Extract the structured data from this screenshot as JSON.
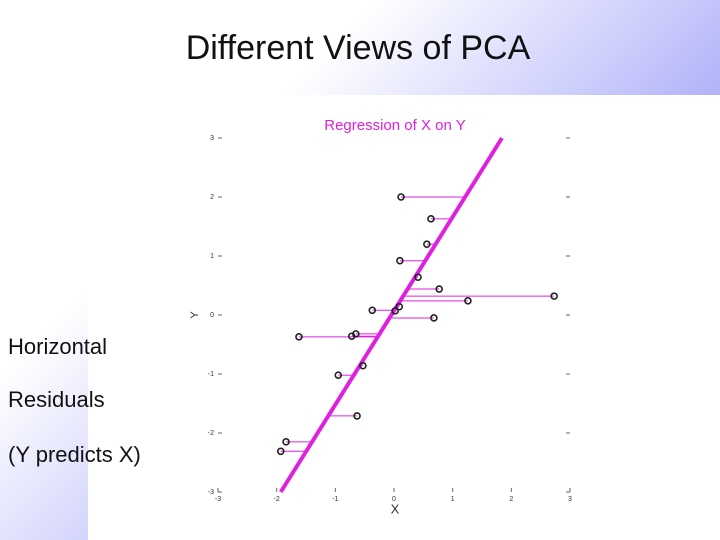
{
  "slide": {
    "title": "Different Views of PCA",
    "text": [
      "Horizontal",
      "Residuals",
      "(Y predicts X)"
    ]
  },
  "chart_data": {
    "type": "scatter",
    "title": "Regression of X on Y",
    "xlabel": "X",
    "ylabel": "Y",
    "x": [
      0.12,
      0.63,
      0.56,
      0.1,
      0.41,
      0.77,
      2.73,
      1.26,
      0.09,
      0.02,
      -0.37,
      0.68,
      -1.62,
      -0.65,
      -0.72,
      -0.53,
      -0.95,
      -0.63,
      -1.84,
      -1.93
    ],
    "y": [
      2.0,
      1.63,
      1.2,
      0.92,
      0.64,
      0.44,
      0.32,
      0.24,
      0.14,
      0.07,
      0.08,
      -0.05,
      -0.37,
      -0.32,
      -0.36,
      -0.86,
      -1.02,
      -1.71,
      -2.15,
      -2.31
    ],
    "color": "#222222",
    "fit_line": {
      "x": [
        -1.93,
        1.84
      ],
      "y": [
        -3,
        3
      ],
      "color": "#e020e0"
    },
    "xlim": [
      -3,
      3
    ],
    "ylim": [
      -3,
      3
    ],
    "xticks": [
      -3,
      -2,
      -1,
      0,
      1,
      2,
      3
    ],
    "yticks": [
      -3,
      -2,
      -1,
      0,
      1,
      2,
      3
    ]
  }
}
